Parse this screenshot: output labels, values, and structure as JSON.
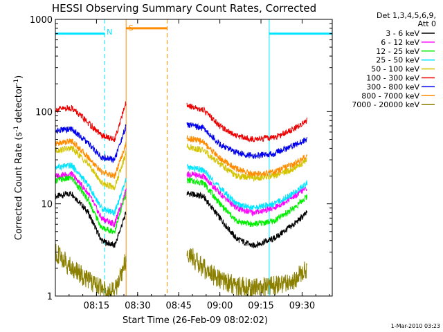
{
  "chart_data": {
    "type": "line",
    "title": "HESSI Observing Summary Count Rates, Corrected",
    "xlabel": "Start Time (26-Feb-09 08:02:02)",
    "ylabel": "Corrected Count Rate (s",
    "ylabel_sup1": "-1",
    "ylabel_mid": " detector",
    "ylabel_sup2": "-1",
    "ylabel_end": ")",
    "y_scale": "log",
    "ylim": [
      1,
      1000
    ],
    "xlim_minutes": [
      8.0,
      9.6833
    ],
    "x_ticks": [
      {
        "value": 8.25,
        "label": "08:15"
      },
      {
        "value": 8.5,
        "label": "08:30"
      },
      {
        "value": 8.75,
        "label": "08:45"
      },
      {
        "value": 9.0,
        "label": "09:00"
      },
      {
        "value": 9.25,
        "label": "09:15"
      },
      {
        "value": 9.5,
        "label": "09:30"
      }
    ],
    "y_ticks": [
      {
        "value": 1,
        "label": "1"
      },
      {
        "value": 10,
        "label": "10"
      },
      {
        "value": 100,
        "label": "100"
      },
      {
        "value": 1000,
        "label": "1000"
      }
    ],
    "legend_header": [
      "Det 1,3,4,5,6,9,",
      "Att 0"
    ],
    "legend_position": "right",
    "timestamp": "1-Mar-2010 03:23",
    "annotations": [
      {
        "label": "N",
        "x": 8.3,
        "color": "#00e5ff"
      },
      {
        "label": "S",
        "x": 8.43,
        "color": "#ff8c00"
      }
    ],
    "series": [
      {
        "name": "3 - 6 keV",
        "color": "#000000",
        "seg1": [
          [
            8.0,
            12
          ],
          [
            8.1,
            13
          ],
          [
            8.2,
            8
          ],
          [
            8.28,
            4
          ],
          [
            8.36,
            3.5
          ],
          [
            8.43,
            8
          ]
        ],
        "seg2": [
          [
            8.8,
            13
          ],
          [
            8.9,
            12
          ],
          [
            9.0,
            7
          ],
          [
            9.1,
            4.2
          ],
          [
            9.2,
            3.5
          ],
          [
            9.33,
            4.2
          ],
          [
            9.45,
            6
          ],
          [
            9.53,
            8
          ]
        ]
      },
      {
        "name": "6 - 12 keV",
        "color": "#ff00ff",
        "seg1": [
          [
            8.0,
            20
          ],
          [
            8.1,
            21
          ],
          [
            8.2,
            13
          ],
          [
            8.28,
            7
          ],
          [
            8.36,
            6
          ],
          [
            8.43,
            14
          ]
        ],
        "seg2": [
          [
            8.8,
            21
          ],
          [
            8.9,
            20
          ],
          [
            9.0,
            13
          ],
          [
            9.1,
            9
          ],
          [
            9.2,
            8
          ],
          [
            9.33,
            9
          ],
          [
            9.45,
            12
          ],
          [
            9.53,
            15
          ]
        ]
      },
      {
        "name": "12 - 25 keV",
        "color": "#00ee00",
        "seg1": [
          [
            8.0,
            18
          ],
          [
            8.1,
            19
          ],
          [
            8.2,
            11
          ],
          [
            8.28,
            5.5
          ],
          [
            8.36,
            5
          ],
          [
            8.43,
            13
          ]
        ],
        "seg2": [
          [
            8.8,
            18
          ],
          [
            8.9,
            17
          ],
          [
            9.0,
            10
          ],
          [
            9.1,
            6.5
          ],
          [
            9.2,
            6
          ],
          [
            9.33,
            6.5
          ],
          [
            9.45,
            9
          ],
          [
            9.53,
            12
          ]
        ]
      },
      {
        "name": "25 - 50 keV",
        "color": "#00e5ff",
        "seg1": [
          [
            8.0,
            25
          ],
          [
            8.1,
            26
          ],
          [
            8.2,
            16
          ],
          [
            8.28,
            9
          ],
          [
            8.36,
            8
          ],
          [
            8.43,
            18
          ]
        ],
        "seg2": [
          [
            8.8,
            25
          ],
          [
            8.9,
            23
          ],
          [
            9.0,
            15
          ],
          [
            9.1,
            10
          ],
          [
            9.2,
            9
          ],
          [
            9.33,
            10
          ],
          [
            9.45,
            13
          ],
          [
            9.53,
            17
          ]
        ]
      },
      {
        "name": "50 - 100 keV",
        "color": "#d4c400",
        "seg1": [
          [
            8.0,
            38
          ],
          [
            8.1,
            40
          ],
          [
            8.2,
            27
          ],
          [
            8.28,
            17
          ],
          [
            8.36,
            15
          ],
          [
            8.43,
            35
          ]
        ],
        "seg2": [
          [
            8.8,
            42
          ],
          [
            8.9,
            38
          ],
          [
            9.0,
            27
          ],
          [
            9.1,
            20
          ],
          [
            9.2,
            19
          ],
          [
            9.33,
            20
          ],
          [
            9.45,
            24
          ],
          [
            9.53,
            30
          ]
        ]
      },
      {
        "name": "100 - 300 keV",
        "color": "#ee0000",
        "seg1": [
          [
            8.0,
            105
          ],
          [
            8.1,
            110
          ],
          [
            8.2,
            75
          ],
          [
            8.28,
            55
          ],
          [
            8.36,
            50
          ],
          [
            8.43,
            125
          ]
        ],
        "seg2": [
          [
            8.8,
            115
          ],
          [
            8.9,
            105
          ],
          [
            9.0,
            70
          ],
          [
            9.1,
            55
          ],
          [
            9.2,
            50
          ],
          [
            9.33,
            52
          ],
          [
            9.45,
            65
          ],
          [
            9.53,
            80
          ]
        ]
      },
      {
        "name": "300 - 800 keV",
        "color": "#0000ee",
        "seg1": [
          [
            8.0,
            62
          ],
          [
            8.1,
            65
          ],
          [
            8.2,
            45
          ],
          [
            8.28,
            32
          ],
          [
            8.36,
            30
          ],
          [
            8.43,
            70
          ]
        ],
        "seg2": [
          [
            8.8,
            72
          ],
          [
            8.9,
            66
          ],
          [
            9.0,
            44
          ],
          [
            9.1,
            36
          ],
          [
            9.2,
            33
          ],
          [
            9.33,
            35
          ],
          [
            9.45,
            43
          ],
          [
            9.53,
            50
          ]
        ]
      },
      {
        "name": "800 - 7000 keV",
        "color": "#ff8c00",
        "seg1": [
          [
            8.0,
            45
          ],
          [
            8.1,
            48
          ],
          [
            8.2,
            32
          ],
          [
            8.28,
            22
          ],
          [
            8.36,
            20
          ],
          [
            8.43,
            45
          ]
        ],
        "seg2": [
          [
            8.8,
            52
          ],
          [
            8.9,
            47
          ],
          [
            9.0,
            31
          ],
          [
            9.1,
            24
          ],
          [
            9.2,
            21
          ],
          [
            9.33,
            22
          ],
          [
            9.45,
            27
          ],
          [
            9.53,
            33
          ]
        ]
      },
      {
        "name": "7000 - 20000 keV",
        "color": "#8b8000",
        "seg1": [
          [
            8.0,
            3
          ],
          [
            8.1,
            2
          ],
          [
            8.2,
            1.5
          ],
          [
            8.28,
            1.2
          ],
          [
            8.36,
            1.1
          ],
          [
            8.43,
            2.5
          ]
        ],
        "seg2": [
          [
            8.8,
            3
          ],
          [
            8.9,
            2
          ],
          [
            9.0,
            1.5
          ],
          [
            9.1,
            1.3
          ],
          [
            9.2,
            1.2
          ],
          [
            9.33,
            1.3
          ],
          [
            9.45,
            1.5
          ],
          [
            9.53,
            2
          ]
        ]
      }
    ],
    "flag_lines": [
      {
        "color": "#00e5ff",
        "y": 700,
        "segments": [
          [
            8.0,
            8.3
          ],
          [
            9.3,
            9.6833
          ]
        ],
        "vertical_solid": [
          8.0,
          9.3
        ],
        "vertical_dashed": [
          8.3,
          9.6833
        ]
      },
      {
        "color": "#ff8c00",
        "y": 800,
        "segments": [
          [
            8.43,
            8.68
          ]
        ],
        "vertical_solid": [
          8.43
        ],
        "vertical_dashed": [
          8.68
        ]
      }
    ]
  }
}
